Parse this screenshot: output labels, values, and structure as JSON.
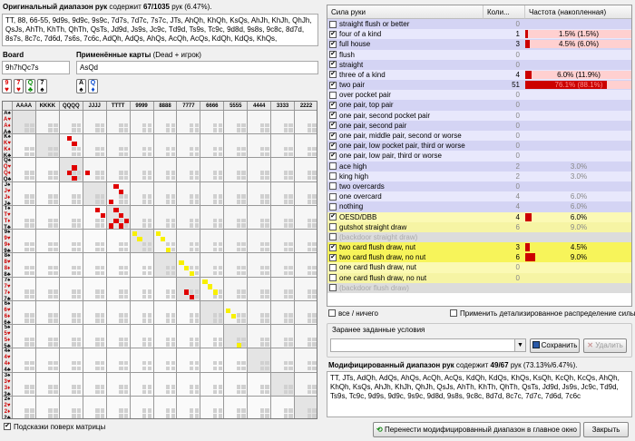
{
  "orig": {
    "title": "Оригинальный диапазон рук",
    "info": "содержит",
    "count": "67/1035",
    "rest": "рук (6.47%).",
    "text": "TT, 88, 66-55, 9d9s, 9d9c, 9s9c, 7d7s, 7d7c, 7s7c, JTs, AhQh, KhQh, KsQs, AhJh, KhJh, QhJh, QsJs, AhTh, KhTh, QhTh, QsTs, Jd9d, Js9s, Jc9c, Td9d, Ts9s, Tc9c, 9d8d, 9s8s, 9c8c, 8d7d, 8s7s, 8c7c, 7d6d, 7s6s, 7c6c, AdQh, AdQs, AhQs, AcQh, AcQs, KdQh, KdQs, KhQs,"
  },
  "board": {
    "label": "Board",
    "value": "9h7hQc7s",
    "cards": [
      {
        "r": "9",
        "s": "♥",
        "c": "red"
      },
      {
        "r": "7",
        "s": "♥",
        "c": "red"
      },
      {
        "r": "Q",
        "s": "♣",
        "c": "grn"
      },
      {
        "r": "7",
        "s": "♠",
        "c": "blk"
      }
    ]
  },
  "dead": {
    "label": "Применённые карты",
    "sub": "(Dead + игрок)",
    "value": "AsQd",
    "cards": [
      {
        "r": "A",
        "s": "♠",
        "c": "blk"
      },
      {
        "r": "Q",
        "s": "♦",
        "c": "blu"
      }
    ]
  },
  "matrix": {
    "ranks": [
      "A",
      "K",
      "Q",
      "J",
      "T",
      "9",
      "8",
      "7",
      "6",
      "5",
      "4",
      "3",
      "2"
    ],
    "suits": [
      "♠",
      "♥",
      "♦",
      "♣"
    ],
    "highlight": "#e00000",
    "yellow": "#f8f000"
  },
  "overlay": {
    "label": "Подсказки поверх матрицы",
    "checked": true
  },
  "table": {
    "headers": [
      "Сила руки",
      "Коли...",
      "Частота (накопленная)"
    ],
    "rows": [
      {
        "name": "straight flush or better",
        "count": "0",
        "pct": "",
        "chk": false,
        "bg": "#d4d4f4"
      },
      {
        "name": "four of a kind",
        "count": "1",
        "pct": "1.5% (1.5%)",
        "chk": true,
        "bg": "#e8e8fc",
        "bar": 1.5
      },
      {
        "name": "full house",
        "count": "3",
        "pct": "4.5% (6.0%)",
        "chk": true,
        "bg": "#d4d4f4",
        "bar": 4.5
      },
      {
        "name": "flush",
        "count": "0",
        "pct": "",
        "chk": true,
        "bg": "#e8e8fc"
      },
      {
        "name": "straight",
        "count": "0",
        "pct": "",
        "chk": true,
        "bg": "#d4d4f4"
      },
      {
        "name": "three of a kind",
        "count": "4",
        "pct": "6.0% (11.9%)",
        "chk": true,
        "bg": "#e8e8fc",
        "bar": 6
      },
      {
        "name": "two pair",
        "count": "51",
        "pct": "76.1% (88.1%)",
        "chk": true,
        "bg": "#d4d4f4",
        "bar": 76.1
      },
      {
        "name": "over pocket pair",
        "count": "0",
        "pct": "",
        "chk": false,
        "bg": "#e8e8fc"
      },
      {
        "name": "one pair, top pair",
        "count": "0",
        "pct": "",
        "chk": true,
        "bg": "#d4d4f4"
      },
      {
        "name": "one pair, second pocket pair",
        "count": "0",
        "pct": "",
        "chk": true,
        "bg": "#e8e8fc"
      },
      {
        "name": "one pair, second pair",
        "count": "0",
        "pct": "",
        "chk": true,
        "bg": "#d4d4f4"
      },
      {
        "name": "one pair, middle pair, second or worse",
        "count": "0",
        "pct": "",
        "chk": true,
        "bg": "#e8e8fc"
      },
      {
        "name": "one pair, low pocket pair, third or worse",
        "count": "0",
        "pct": "",
        "chk": true,
        "bg": "#d4d4f4"
      },
      {
        "name": "one pair, low pair, third or worse",
        "count": "0",
        "pct": "",
        "chk": true,
        "bg": "#e8e8fc"
      },
      {
        "name": "ace high",
        "count": "2",
        "pct": "3.0%",
        "chk": false,
        "bg": "#d4d4f4",
        "dim": true
      },
      {
        "name": "king high",
        "count": "2",
        "pct": "3.0%",
        "chk": false,
        "bg": "#e8e8fc",
        "dim": true
      },
      {
        "name": "two overcards",
        "count": "0",
        "pct": "",
        "chk": false,
        "bg": "#d4d4f4"
      },
      {
        "name": "one overcard",
        "count": "4",
        "pct": "6.0%",
        "chk": false,
        "bg": "#e8e8fc",
        "dim": true
      },
      {
        "name": "nothing",
        "count": "4",
        "pct": "6.0%",
        "chk": false,
        "bg": "#d4d4f4",
        "dim": true
      },
      {
        "name": "OESD/DBB",
        "count": "4",
        "pct": "6.0%",
        "chk": true,
        "bg": "#fbf9b4",
        "bar": 6
      },
      {
        "name": "gutshot straight draw",
        "count": "6",
        "pct": "9.0%",
        "chk": false,
        "bg": "#f6f4a4",
        "dim": true
      },
      {
        "name": "(backdoor straight draw)",
        "count": "",
        "pct": "",
        "chk": false,
        "bg": "#dcdcdc",
        "sep": true
      },
      {
        "name": "two card flush draw, nut",
        "count": "3",
        "pct": "4.5%",
        "chk": true,
        "bg": "#f7f45a",
        "bar": 4.5
      },
      {
        "name": "two card flush draw, no nut",
        "count": "6",
        "pct": "9.0%",
        "chk": true,
        "bg": "#f7f45a",
        "bar": 9
      },
      {
        "name": "one card flush draw, nut",
        "count": "0",
        "pct": "",
        "chk": false,
        "bg": "#fbf9b4"
      },
      {
        "name": "one card flush draw, no nut",
        "count": "0",
        "pct": "",
        "chk": false,
        "bg": "#f6f4a4"
      },
      {
        "name": "(backdoor flush draw)",
        "count": "",
        "pct": "",
        "chk": false,
        "bg": "#dcdcdc",
        "sep": true
      }
    ]
  },
  "allnone": "все / ничего",
  "detailed": "Применить детализированное распределение силы",
  "preset": {
    "label": "Заранее заданные условия",
    "save": "Сохранить",
    "del": "Удалить"
  },
  "mod": {
    "title": "Модифицированный диапазон рук",
    "info": "содержит",
    "count": "49/67",
    "rest": "рук (73.13%/6.47%).",
    "text": "TT, JTs, AdQh, AdQs, AhQs, AcQh, AcQs, KdQh, KdQs, KhQs, KsQh, KcQh, KcQs, AhQh, KhQh, KsQs, AhJh, KhJh, QhJh, QsJs, AhTh, KhTh, QhTh, QsTs, Jd9d, Js9s, Jc9c, Td9d, Ts9s, Tc9c, 9d9s, 9d9c, 9s9c, 9d8d, 9s8s, 9c8c, 8d7d, 8c7c, 7d7c, 7d6d, 7c6c"
  },
  "transfer": "Перенести модифицированный диапазон в главное окно",
  "close": "Закрыть"
}
